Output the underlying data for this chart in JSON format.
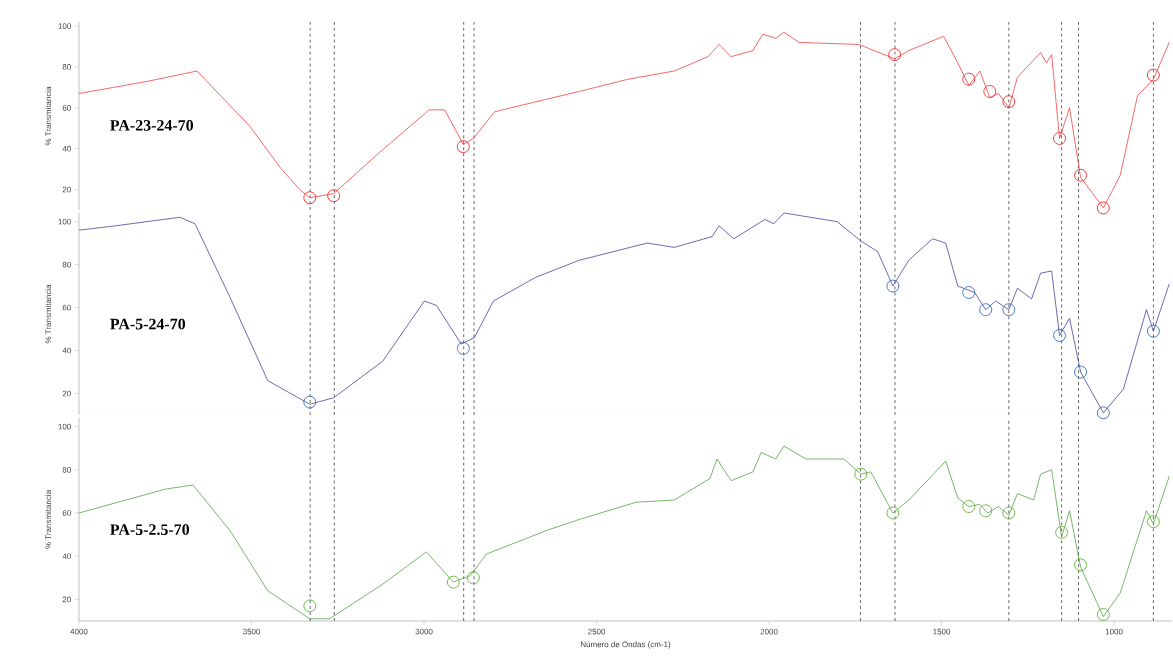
{
  "chart_data": [
    {
      "type": "line",
      "ylabel": "% Transmitancia",
      "xlim": [
        4000,
        832
      ],
      "ylim": [
        10,
        102
      ],
      "yticks": [
        20,
        40,
        60,
        80,
        100
      ],
      "tick_labels": "y",
      "x": [
        4000,
        3900,
        3800,
        3658,
        3505,
        3418,
        3360,
        3331,
        3262,
        3130,
        2985,
        2940,
        2886,
        2857,
        2796,
        2650,
        2550,
        2408,
        2275,
        2177,
        2145,
        2110,
        2047,
        2018,
        1980,
        1957,
        1913,
        1740,
        1636,
        1595,
        1494,
        1453,
        1421,
        1389,
        1360,
        1335,
        1305,
        1280,
        1213,
        1196,
        1181,
        1158,
        1129,
        1097,
        1031,
        982,
        932,
        886,
        840
      ],
      "series": [
        {
          "name": "PA-23-24-70",
          "color": "#f02a2a",
          "values": [
            67,
            70,
            73,
            78,
            51,
            31,
            20,
            16,
            18,
            38,
            59,
            59,
            42,
            45,
            58,
            64,
            68,
            74,
            78,
            85,
            91,
            85,
            88,
            96,
            94,
            97,
            92,
            91,
            84,
            88,
            95,
            82,
            71,
            78,
            65,
            67,
            60,
            75,
            87,
            82,
            86,
            45,
            60,
            26,
            11,
            27,
            66,
            74,
            92
          ]
        },
        {
          "type": "scatter",
          "marker": "circle",
          "color": "#f02a2a",
          "x": [
            3331,
            3262,
            2886,
            1636,
            1421,
            1360,
            1305,
            1158,
            1097,
            1031,
            886
          ],
          "values": [
            16,
            17,
            41,
            86,
            74,
            68,
            63,
            45,
            27,
            11,
            76
          ]
        }
      ],
      "ref_lines": [
        {
          "axis": "x",
          "value": 3330,
          "color": "#000000",
          "line_style": "dashed"
        },
        {
          "axis": "x",
          "value": 3260,
          "color": "#000000",
          "line_style": "dashed"
        },
        {
          "axis": "x",
          "value": 2885,
          "color": "#000000",
          "line_style": "dashed"
        },
        {
          "axis": "x",
          "value": 2855,
          "color": "#000000",
          "line_style": "dashed"
        },
        {
          "axis": "x",
          "value": 1735,
          "color": "#000000",
          "line_style": "dashed"
        },
        {
          "axis": "x",
          "value": 1635,
          "color": "#000000",
          "line_style": "dashed"
        },
        {
          "axis": "x",
          "value": 1305,
          "color": "#000000",
          "line_style": "dashed"
        },
        {
          "axis": "x",
          "value": 1152,
          "color": "#000000",
          "line_style": "dashed"
        },
        {
          "axis": "x",
          "value": 1103,
          "color": "#000000",
          "line_style": "dashed"
        },
        {
          "axis": "x",
          "value": 886,
          "color": "#000000",
          "line_style": "dashed"
        }
      ]
    },
    {
      "type": "line",
      "ylabel": "% Transmitancia",
      "xlim": [
        4000,
        832
      ],
      "ylim": [
        10,
        104
      ],
      "yticks": [
        20,
        40,
        60,
        80,
        100
      ],
      "tick_labels": "y",
      "x": [
        4000,
        3896,
        3708,
        3664,
        3563,
        3453,
        3331,
        3262,
        3120,
        2999,
        2964,
        2892,
        2854,
        2799,
        2677,
        2550,
        2353,
        2275,
        2165,
        2145,
        2102,
        2012,
        1986,
        1957,
        1803,
        1734,
        1685,
        1641,
        1595,
        1526,
        1488,
        1453,
        1404,
        1372,
        1343,
        1305,
        1280,
        1239,
        1213,
        1181,
        1158,
        1129,
        1097,
        1031,
        973,
        906,
        886,
        840
      ],
      "series": [
        {
          "name": "PA-5-24-70",
          "color": "#2c2c8e",
          "values": [
            96,
            98,
            102,
            99,
            65,
            26,
            15,
            18,
            35,
            63,
            61,
            43,
            46,
            63,
            74,
            82,
            90,
            88,
            93,
            98,
            92,
            101,
            99,
            104,
            100,
            91,
            86,
            70,
            82,
            92,
            90,
            70,
            67,
            59,
            63,
            59,
            69,
            64,
            76,
            77,
            47,
            55,
            30,
            11,
            22,
            59,
            49,
            71
          ]
        },
        {
          "type": "scatter",
          "marker": "circle",
          "color": "#3b6db3",
          "x": [
            3331,
            2886,
            1641,
            1421,
            1372,
            1305,
            1158,
            1097,
            1031,
            886
          ],
          "values": [
            16,
            41,
            70,
            67,
            59,
            59,
            47,
            30,
            11,
            49
          ]
        }
      ],
      "ref_lines": [
        {
          "axis": "x",
          "value": 3330,
          "color": "#000000",
          "line_style": "dashed"
        },
        {
          "axis": "x",
          "value": 3260,
          "color": "#000000",
          "line_style": "dashed"
        },
        {
          "axis": "x",
          "value": 2885,
          "color": "#000000",
          "line_style": "dashed"
        },
        {
          "axis": "x",
          "value": 2855,
          "color": "#000000",
          "line_style": "dashed"
        },
        {
          "axis": "x",
          "value": 1735,
          "color": "#000000",
          "line_style": "dashed"
        },
        {
          "axis": "x",
          "value": 1635,
          "color": "#000000",
          "line_style": "dashed"
        },
        {
          "axis": "x",
          "value": 1305,
          "color": "#000000",
          "line_style": "dashed"
        },
        {
          "axis": "x",
          "value": 1152,
          "color": "#000000",
          "line_style": "dashed"
        },
        {
          "axis": "x",
          "value": 1103,
          "color": "#000000",
          "line_style": "dashed"
        },
        {
          "axis": "x",
          "value": 886,
          "color": "#000000",
          "line_style": "dashed"
        }
      ]
    },
    {
      "type": "line",
      "xlabel": "Número de Ondas (cm-1)",
      "ylabel": "% Transmitancia",
      "xlim": [
        4000,
        832
      ],
      "ylim": [
        10,
        104
      ],
      "xticks": [
        4000,
        3500,
        3000,
        2500,
        2000,
        1500,
        1000
      ],
      "yticks": [
        20,
        40,
        60,
        80,
        100
      ],
      "x": [
        4000,
        3751,
        3670,
        3563,
        3453,
        3331,
        3274,
        3120,
        2993,
        2915,
        2866,
        2819,
        2643,
        2550,
        2385,
        2275,
        2171,
        2151,
        2110,
        2047,
        2023,
        1980,
        1957,
        1893,
        1783,
        1734,
        1705,
        1641,
        1595,
        1488,
        1453,
        1421,
        1389,
        1366,
        1335,
        1305,
        1280,
        1233,
        1213,
        1181,
        1152,
        1129,
        1097,
        1031,
        982,
        906,
        886,
        840
      ],
      "series": [
        {
          "name": "PA-5-2.5-70",
          "color": "#3c9a2c",
          "values": [
            60,
            71,
            73,
            52,
            24,
            11,
            11,
            27,
            42,
            28,
            31,
            41,
            52,
            57,
            65,
            66,
            76,
            85,
            75,
            79,
            88,
            85,
            91,
            85,
            85,
            78,
            79,
            60,
            66,
            84,
            67,
            63,
            64,
            60,
            63,
            59,
            69,
            66,
            78,
            80,
            49,
            61,
            35,
            12,
            23,
            61,
            55,
            77
          ]
        },
        {
          "type": "scatter",
          "marker": "circle",
          "color": "#63b23a",
          "x": [
            3331,
            2915,
            2857,
            1734,
            1641,
            1421,
            1372,
            1305,
            1152,
            1097,
            1031,
            886
          ],
          "values": [
            17,
            28,
            30,
            78,
            60,
            63,
            61,
            60,
            51,
            36,
            13,
            56
          ]
        }
      ],
      "ref_lines": [
        {
          "axis": "x",
          "value": 3330,
          "color": "#000000",
          "line_style": "dashed"
        },
        {
          "axis": "x",
          "value": 3260,
          "color": "#000000",
          "line_style": "dashed"
        },
        {
          "axis": "x",
          "value": 2885,
          "color": "#000000",
          "line_style": "dashed"
        },
        {
          "axis": "x",
          "value": 2855,
          "color": "#000000",
          "line_style": "dashed"
        },
        {
          "axis": "x",
          "value": 1735,
          "color": "#000000",
          "line_style": "dashed"
        },
        {
          "axis": "x",
          "value": 1635,
          "color": "#000000",
          "line_style": "dashed"
        },
        {
          "axis": "x",
          "value": 1305,
          "color": "#000000",
          "line_style": "dashed"
        },
        {
          "axis": "x",
          "value": 1152,
          "color": "#000000",
          "line_style": "dashed"
        },
        {
          "axis": "x",
          "value": 1103,
          "color": "#000000",
          "line_style": "dashed"
        },
        {
          "axis": "x",
          "value": 886,
          "color": "#000000",
          "line_style": "dashed"
        }
      ]
    }
  ]
}
